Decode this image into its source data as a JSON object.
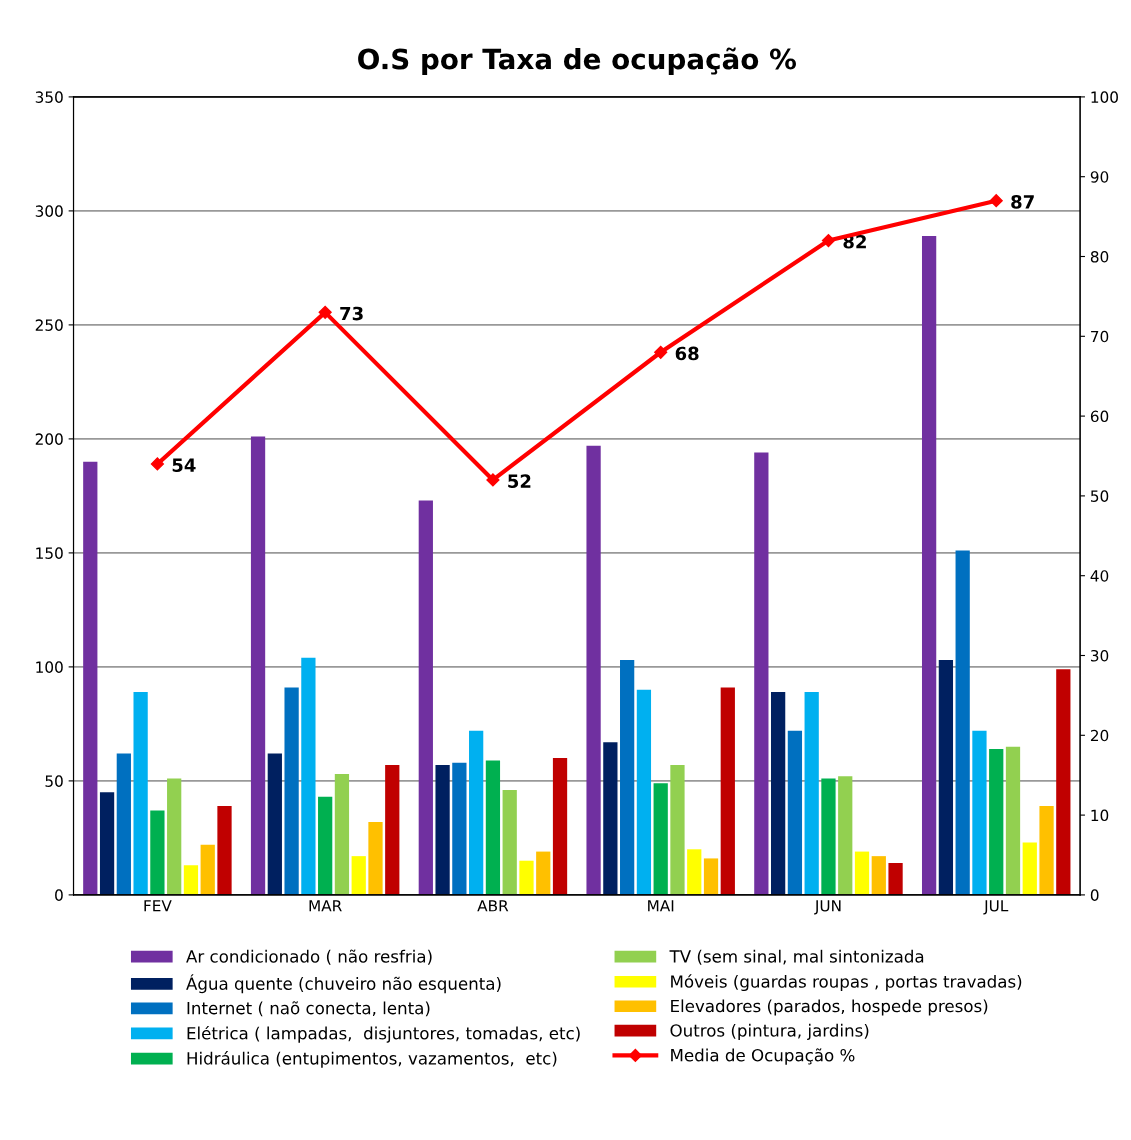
{
  "chart_data": {
    "type": "bar",
    "title": "O.S por Taxa de ocupação %",
    "categories": [
      "FEV",
      "MAR",
      "ABR",
      "MAI",
      "JUN",
      "JUL"
    ],
    "series": [
      {
        "name": "Ar condicionado ( não resfria)",
        "color": "#7030a0",
        "values": [
          190,
          201,
          173,
          197,
          194,
          289
        ]
      },
      {
        "name": "Água quente (chuveiro não esquenta)",
        "color": "#002060",
        "values": [
          45,
          62,
          57,
          67,
          89,
          103
        ]
      },
      {
        "name": "Internet ( naõ conecta, lenta)",
        "color": "#0070c0",
        "values": [
          62,
          91,
          58,
          103,
          72,
          151
        ]
      },
      {
        "name": "Elétrica ( lampadas,  disjuntores, tomadas, etc)",
        "color": "#00b0f0",
        "values": [
          89,
          104,
          72,
          90,
          89,
          72
        ]
      },
      {
        "name": "Hidráulica (entupimentos, vazamentos,  etc)",
        "color": "#00b050",
        "values": [
          37,
          43,
          59,
          49,
          51,
          64
        ]
      },
      {
        "name": "TV (sem sinal, mal sintonizada",
        "color": "#92d050",
        "values": [
          51,
          53,
          46,
          57,
          52,
          65
        ]
      },
      {
        "name": "Móveis (guardas roupas , portas travadas)",
        "color": "#ffff00",
        "values": [
          13,
          17,
          15,
          20,
          19,
          23
        ]
      },
      {
        "name": "Elevadores (parados, hospede presos)",
        "color": "#ffc000",
        "values": [
          22,
          32,
          19,
          16,
          17,
          39
        ]
      },
      {
        "name": "Outros (pintura, jardins)",
        "color": "#c00000",
        "values": [
          39,
          57,
          60,
          91,
          14,
          99
        ]
      },
      {
        "name": "Media de Ocupação %",
        "type": "line",
        "axis": "y2",
        "color": "#ff0000",
        "marker": "diamond",
        "data_labels": true,
        "values": [
          54,
          73,
          52,
          68,
          82,
          87
        ]
      }
    ],
    "ylim": [
      0,
      350
    ],
    "yticks": [
      0,
      50,
      100,
      150,
      200,
      250,
      300,
      350
    ],
    "y2lim": [
      0,
      100
    ],
    "y2ticks": [
      0,
      10,
      20,
      30,
      40,
      50,
      60,
      70,
      80,
      90,
      100
    ],
    "grid": "y",
    "legend": "bottom"
  }
}
